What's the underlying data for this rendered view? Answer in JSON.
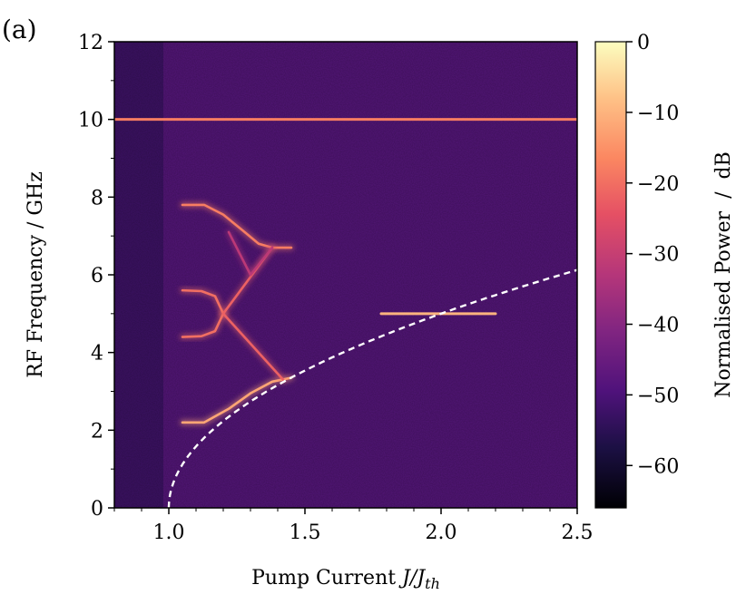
{
  "figure": {
    "panel_label": "(a)"
  },
  "chart_data": {
    "type": "heatmap",
    "title": "",
    "xlabel": "Pump Current J/J_th",
    "xlabel_parts": {
      "main": "Pump Current ",
      "sym": "J",
      "slash": "/",
      "sym2": "J",
      "sub": "th"
    },
    "ylabel": "RF Frequency / GHz",
    "colorbar_label": "Normalised Power  /  dB",
    "colormap": "magma",
    "xlim": [
      0.8,
      2.5
    ],
    "ylim": [
      0,
      12
    ],
    "clim": [
      -66,
      0
    ],
    "x_ticks": [
      1.0,
      1.5,
      2.0,
      2.5
    ],
    "x_tick_labels": [
      "1.0",
      "1.5",
      "2.0",
      "2.5"
    ],
    "y_ticks": [
      0,
      2,
      4,
      6,
      8,
      10,
      12
    ],
    "y_tick_labels": [
      "0",
      "2",
      "4",
      "6",
      "8",
      "10",
      "12"
    ],
    "colorbar_ticks": [
      0,
      -10,
      -20,
      -30,
      -40,
      -50,
      -60
    ],
    "colorbar_tick_labels": [
      "0",
      "−10",
      "−20",
      "−30",
      "−40",
      "−50",
      "−60"
    ],
    "background_level_db": -45,
    "lasing_threshold_x": 1.0,
    "features": [
      {
        "name": "clock line",
        "kind": "horizontal",
        "y": 10.0,
        "x_range": [
          0.8,
          2.5
        ],
        "level_db": -18
      },
      {
        "name": "relaxation oscillation",
        "kind": "sqrt-curve",
        "equation": "f = 5.0*sqrt(J/Jth - 1)",
        "x_range": [
          1.0,
          2.5
        ],
        "style": "white dashed"
      },
      {
        "name": "lower branch",
        "kind": "curve",
        "points": [
          [
            1.05,
            2.2
          ],
          [
            1.13,
            2.2
          ],
          [
            1.22,
            2.55
          ],
          [
            1.3,
            2.95
          ],
          [
            1.38,
            3.25
          ],
          [
            1.45,
            3.35
          ]
        ],
        "level_db": -12
      },
      {
        "name": "resonance spot",
        "kind": "horizontal",
        "y": 5.0,
        "x_range": [
          1.78,
          2.2
        ],
        "level_db": -10
      },
      {
        "name": "top branch",
        "kind": "curve",
        "points": [
          [
            1.05,
            7.8
          ],
          [
            1.13,
            7.8
          ],
          [
            1.2,
            7.55
          ],
          [
            1.27,
            7.15
          ],
          [
            1.33,
            6.8
          ],
          [
            1.38,
            6.7
          ],
          [
            1.45,
            6.7
          ]
        ],
        "level_db": -18
      },
      {
        "name": "upper arc",
        "kind": "curve",
        "points": [
          [
            1.05,
            5.6
          ],
          [
            1.12,
            5.58
          ],
          [
            1.17,
            5.45
          ],
          [
            1.2,
            5.0
          ]
        ],
        "level_db": -20
      },
      {
        "name": "lower arc",
        "kind": "curve",
        "points": [
          [
            1.05,
            4.4
          ],
          [
            1.12,
            4.42
          ],
          [
            1.17,
            4.55
          ],
          [
            1.2,
            5.0
          ]
        ],
        "level_db": -20
      },
      {
        "name": "diagonal up",
        "kind": "line",
        "points": [
          [
            1.2,
            5.0
          ],
          [
            1.38,
            6.7
          ]
        ],
        "level_db": -22
      },
      {
        "name": "diagonal down",
        "kind": "line",
        "points": [
          [
            1.2,
            5.0
          ],
          [
            1.42,
            3.3
          ]
        ],
        "level_db": -22
      },
      {
        "name": "faint branch",
        "kind": "line",
        "points": [
          [
            1.22,
            7.1
          ],
          [
            1.3,
            6.0
          ],
          [
            1.38,
            6.7
          ]
        ],
        "level_db": -32
      }
    ]
  }
}
